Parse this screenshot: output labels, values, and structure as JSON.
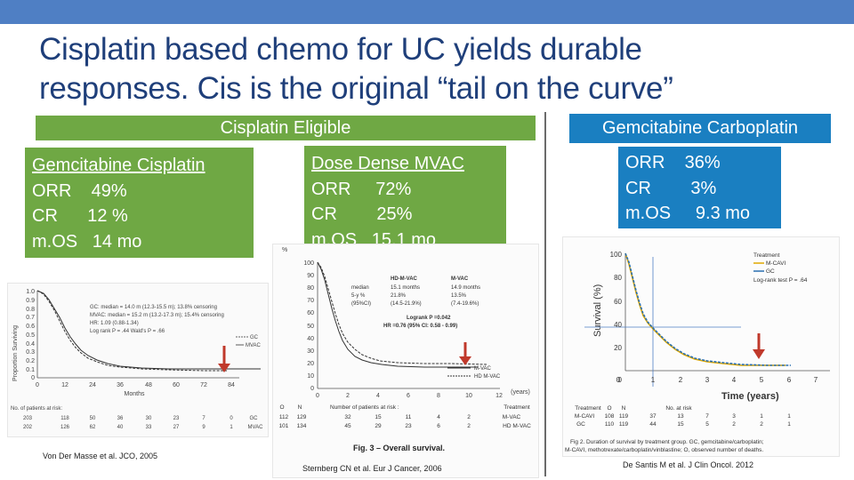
{
  "slide": {
    "title_line1": "Cisplatin based chemo for UC yields durable",
    "title_line2": "responses. Cis is the original “tail on the curve”"
  },
  "left_panel": {
    "header": "Cisplatin Eligible",
    "gc_box": {
      "line1": "Gemcitabine Cisplatin",
      "line2": "ORR    49%",
      "line3": "CR      12 %",
      "line4": "m.OS   14 mo"
    },
    "mvac_box": {
      "line1": "Dose Dense MVAC",
      "line2": "ORR     72%",
      "line3": "CR        25%",
      "line4": "m.OS   15.1 mo"
    }
  },
  "right_panel": {
    "header": "Gemcitabine Carboplatin",
    "box": {
      "line1": "ORR    36%",
      "line2": "CR        3%",
      "line3": "m.OS     9.3 mo"
    }
  },
  "figure1": {
    "y_ticks": [
      "1.0",
      "0.9",
      "0.8",
      "0.7",
      "0.6",
      "0.5",
      "0.4",
      "0.3",
      "0.2",
      "0.1",
      "0"
    ],
    "x_ticks": [
      "0",
      "12",
      "24",
      "36",
      "48",
      "60",
      "72",
      "84"
    ],
    "xlabel": "Months",
    "ylabel": "Proportion Surviving",
    "stats": [
      "GC: median = 14.0 m (12.3-15.5 m); 13.8% censoring",
      "MVAC: median = 15.2 m (13.2-17.3 m); 15.4% censoring",
      "HR: 1.09 (0.88-1.34)",
      "Log rank P = .44   Wald's P = .66"
    ],
    "legend": [
      "GC",
      "MVAC"
    ],
    "risk_title": "No. of patients at risk:",
    "risk_gc": [
      "203",
      "118",
      "50",
      "36",
      "30",
      "23",
      "7",
      "0",
      "GC"
    ],
    "risk_mvac": [
      "202",
      "126",
      "62",
      "40",
      "33",
      "27",
      "9",
      "1",
      "MVAC"
    ],
    "citation": "Von Der Masse et al. JCO, 2005"
  },
  "figure2": {
    "y_axis_title": "%",
    "y_ticks": [
      "100",
      "90",
      "80",
      "70",
      "60",
      "50",
      "40",
      "30",
      "20",
      "10",
      "0"
    ],
    "x_ticks": [
      "0",
      "2",
      "4",
      "6",
      "8",
      "10",
      "12"
    ],
    "x_unit": "(years)",
    "table_head": [
      "HD-M-VAC",
      "M-VAC"
    ],
    "table_rows": [
      [
        "median",
        "15.1 months",
        "14.9 months"
      ],
      [
        "5-y %",
        "21.8%",
        "13.5%"
      ],
      [
        "(95%CI)",
        "(14.5-21.9%)",
        "(7.4-19.6%)"
      ]
    ],
    "logrank": "Logrank P =0.042",
    "hr": "HR =0.76 (95% CI: 0.58 - 0.99)",
    "legend": [
      "M-VAC",
      "HD M-VAC"
    ],
    "risk_title": "Number of patients at risk :",
    "risk_header": [
      "O",
      "N"
    ],
    "risk_row1": [
      "112",
      "129",
      "32",
      "15",
      "11",
      "4",
      "2"
    ],
    "risk_row2": [
      "101",
      "134",
      "45",
      "29",
      "23",
      "6",
      "2"
    ],
    "risk_labels": [
      "Treatment",
      "M-VAC",
      "HD M-VAC"
    ],
    "caption": "Fig. 3 – Overall survival.",
    "citation": "Sternberg CN et al. Eur J Cancer, 2006"
  },
  "figure3": {
    "y_ticks": [
      "100",
      "80",
      "60",
      "40",
      "20",
      "0"
    ],
    "x_ticks": [
      "0",
      "1",
      "2",
      "3",
      "4",
      "5",
      "6",
      "7"
    ],
    "xlabel": "Time (years)",
    "ylabel": "Survival (%)",
    "legend_title": "Treatment",
    "legend": [
      "M-CAVI",
      "GC"
    ],
    "logrank": "Log-rank test P = .64",
    "risk_head": [
      "Treatment",
      "O",
      "N",
      "No. at risk"
    ],
    "risk_mcavi": [
      "M-CAVI",
      "108",
      "119",
      "37",
      "13",
      "7",
      "3",
      "1",
      "1"
    ],
    "risk_gc": [
      "GC",
      "110",
      "119",
      "44",
      "15",
      "5",
      "2",
      "2",
      "1"
    ],
    "caption1": "Fig 2. Duration of survival by treatment group. GC, gemcitabine/carboplatin;",
    "caption2": "M-CAVI, methotrexate/carboplatin/vinblastine; O, observed number of deaths.",
    "citation": "De Santis M et al. J Clin Oncol. 2012"
  },
  "colors": {
    "topbar": "#4f7fc4",
    "title": "#1f3f7a",
    "green": "#6fa844",
    "blue": "#1a7fc1",
    "arrow": "#c0392b",
    "mcavi": "#e0a800",
    "gc_curve": "#2a6fb0"
  }
}
